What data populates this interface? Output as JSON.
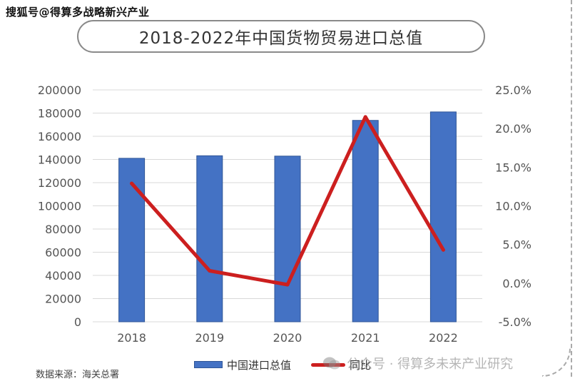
{
  "watermark_top": "搜狐号@得算多战略新兴产业",
  "source": "数据来源：海关总署",
  "watermark_bottom": "公众号 · 得算多未来产业研究",
  "colors": {
    "bar": "#4472c4",
    "line": "#cc1f1f"
  },
  "chart_data": {
    "type": "bar",
    "title": "2018-2022年中国货物贸易进口总值",
    "categories": [
      "2018",
      "2019",
      "2020",
      "2021",
      "2022"
    ],
    "series": [
      {
        "name": "中国进口总值",
        "type": "bar",
        "axis": "left",
        "values": [
          141000,
          143200,
          142900,
          173700,
          181000
        ]
      },
      {
        "name": "同比",
        "type": "line",
        "axis": "right",
        "values": [
          12.9,
          1.6,
          -0.2,
          21.5,
          4.3
        ]
      }
    ],
    "y_left": {
      "min": 0,
      "max": 200000,
      "ticks": [
        "0",
        "20000",
        "40000",
        "60000",
        "80000",
        "100000",
        "120000",
        "140000",
        "160000",
        "180000",
        "200000"
      ]
    },
    "y_right": {
      "min": -5,
      "max": 25,
      "ticks": [
        "-5.0%",
        "0.0%",
        "5.0%",
        "10.0%",
        "15.0%",
        "20.0%",
        "25.0%"
      ]
    },
    "grid": true,
    "legend_position": "bottom"
  }
}
